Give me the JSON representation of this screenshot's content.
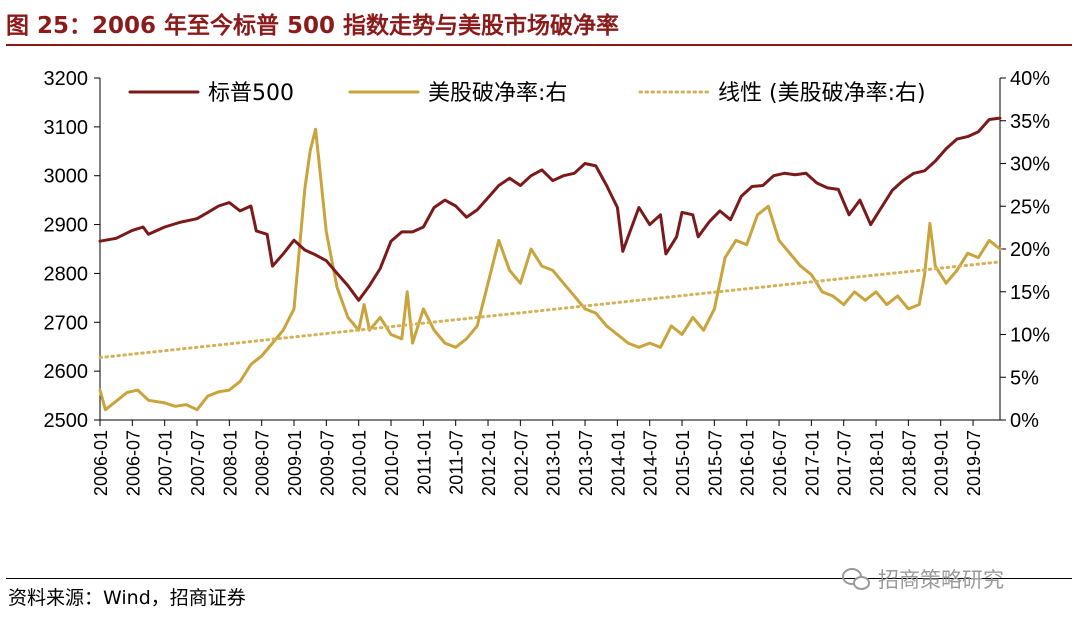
{
  "figure": {
    "title": "图 25：2006 年至今标普 500 指数走势与美股市场破净率",
    "source": "资料来源：Wind，招商证券",
    "watermark": "招商策略研究"
  },
  "colors": {
    "title": "#8b1a1a",
    "sp500": "#7a1a1a",
    "pb_ratio": "#c9a33c",
    "trend": "#d4b25a"
  },
  "icons": {
    "watermark": "wechat-icon"
  },
  "chart_data": {
    "type": "line",
    "title": "",
    "x_tick_labels": [
      "2006-01",
      "2006-07",
      "2007-01",
      "2007-07",
      "2008-01",
      "2008-07",
      "2009-01",
      "2009-07",
      "2010-01",
      "2010-07",
      "2011-01",
      "2011-07",
      "2012-01",
      "2012-07",
      "2013-01",
      "2013-07",
      "2014-01",
      "2014-07",
      "2015-01",
      "2015-07",
      "2016-01",
      "2016-07",
      "2017-01",
      "2017-07",
      "2018-01",
      "2018-07",
      "2019-01",
      "2019-07"
    ],
    "x_range": [
      "2006-01",
      "2019-12"
    ],
    "y_left": {
      "range": [
        2500,
        3200
      ],
      "ticks": [
        2500,
        2600,
        2700,
        2800,
        2900,
        3000,
        3100,
        3200
      ]
    },
    "y_right": {
      "range": [
        0,
        40
      ],
      "ticks": [
        "0%",
        "5%",
        "10%",
        "15%",
        "20%",
        "25%",
        "30%",
        "35%",
        "40%"
      ],
      "unit": "%"
    },
    "legend": {
      "placement": "top"
    },
    "series": [
      {
        "name": "标普500",
        "axis": "left",
        "style": "solid",
        "points": [
          [
            "2006-01",
            2866
          ],
          [
            "2006-04",
            2872
          ],
          [
            "2006-07",
            2888
          ],
          [
            "2006-09",
            2895
          ],
          [
            "2006-10",
            2880
          ],
          [
            "2007-01",
            2895
          ],
          [
            "2007-04",
            2905
          ],
          [
            "2007-07",
            2912
          ],
          [
            "2007-09",
            2925
          ],
          [
            "2007-11",
            2938
          ],
          [
            "2008-01",
            2945
          ],
          [
            "2008-03",
            2928
          ],
          [
            "2008-05",
            2938
          ],
          [
            "2008-06",
            2887
          ],
          [
            "2008-08",
            2880
          ],
          [
            "2008-09",
            2815
          ],
          [
            "2008-11",
            2840
          ],
          [
            "2009-01",
            2868
          ],
          [
            "2009-03",
            2848
          ],
          [
            "2009-05",
            2838
          ],
          [
            "2009-07",
            2826
          ],
          [
            "2009-09",
            2800
          ],
          [
            "2009-11",
            2775
          ],
          [
            "2010-01",
            2745
          ],
          [
            "2010-03",
            2775
          ],
          [
            "2010-05",
            2810
          ],
          [
            "2010-07",
            2866
          ],
          [
            "2010-09",
            2885
          ],
          [
            "2010-11",
            2885
          ],
          [
            "2011-01",
            2895
          ],
          [
            "2011-03",
            2935
          ],
          [
            "2011-05",
            2950
          ],
          [
            "2011-07",
            2938
          ],
          [
            "2011-09",
            2915
          ],
          [
            "2011-11",
            2930
          ],
          [
            "2012-01",
            2955
          ],
          [
            "2012-03",
            2980
          ],
          [
            "2012-05",
            2995
          ],
          [
            "2012-07",
            2980
          ],
          [
            "2012-09",
            3000
          ],
          [
            "2012-11",
            3012
          ],
          [
            "2013-01",
            2990
          ],
          [
            "2013-03",
            3000
          ],
          [
            "2013-05",
            3005
          ],
          [
            "2013-07",
            3025
          ],
          [
            "2013-09",
            3020
          ],
          [
            "2013-11",
            2980
          ],
          [
            "2014-01",
            2935
          ],
          [
            "2014-02",
            2845
          ],
          [
            "2014-03",
            2875
          ],
          [
            "2014-05",
            2935
          ],
          [
            "2014-07",
            2900
          ],
          [
            "2014-09",
            2920
          ],
          [
            "2014-10",
            2840
          ],
          [
            "2014-12",
            2875
          ],
          [
            "2015-01",
            2925
          ],
          [
            "2015-03",
            2920
          ],
          [
            "2015-04",
            2875
          ],
          [
            "2015-06",
            2905
          ],
          [
            "2015-08",
            2928
          ],
          [
            "2015-10",
            2910
          ],
          [
            "2015-12",
            2958
          ],
          [
            "2016-02",
            2978
          ],
          [
            "2016-04",
            2980
          ],
          [
            "2016-06",
            3000
          ],
          [
            "2016-08",
            3005
          ],
          [
            "2016-10",
            3002
          ],
          [
            "2016-12",
            3005
          ],
          [
            "2017-02",
            2985
          ],
          [
            "2017-04",
            2975
          ],
          [
            "2017-06",
            2972
          ],
          [
            "2017-08",
            2920
          ],
          [
            "2017-10",
            2950
          ],
          [
            "2017-12",
            2900
          ],
          [
            "2018-02",
            2935
          ],
          [
            "2018-04",
            2970
          ],
          [
            "2018-06",
            2990
          ],
          [
            "2018-08",
            3005
          ],
          [
            "2018-10",
            3010
          ],
          [
            "2018-12",
            3030
          ],
          [
            "2019-02",
            3055
          ],
          [
            "2019-04",
            3075
          ],
          [
            "2019-06",
            3080
          ],
          [
            "2019-08",
            3090
          ],
          [
            "2019-10",
            3115
          ],
          [
            "2019-12",
            3118
          ]
        ]
      },
      {
        "name": "美股破净率:右",
        "axis": "right",
        "style": "solid",
        "points": [
          [
            "2006-01",
            3.5
          ],
          [
            "2006-02",
            1.2
          ],
          [
            "2006-04",
            2.2
          ],
          [
            "2006-06",
            3.2
          ],
          [
            "2006-08",
            3.5
          ],
          [
            "2006-10",
            2.3
          ],
          [
            "2007-01",
            2.0
          ],
          [
            "2007-03",
            1.6
          ],
          [
            "2007-05",
            1.8
          ],
          [
            "2007-07",
            1.2
          ],
          [
            "2007-09",
            2.8
          ],
          [
            "2007-11",
            3.3
          ],
          [
            "2008-01",
            3.5
          ],
          [
            "2008-03",
            4.5
          ],
          [
            "2008-05",
            6.5
          ],
          [
            "2008-07",
            7.5
          ],
          [
            "2008-09",
            9.0
          ],
          [
            "2008-11",
            10.5
          ],
          [
            "2009-01",
            13.0
          ],
          [
            "2009-02",
            20.0
          ],
          [
            "2009-03",
            27.0
          ],
          [
            "2009-04",
            31.5
          ],
          [
            "2009-05",
            34.0
          ],
          [
            "2009-06",
            28.0
          ],
          [
            "2009-07",
            22.0
          ],
          [
            "2009-09",
            15.5
          ],
          [
            "2009-11",
            12.0
          ],
          [
            "2010-01",
            10.5
          ],
          [
            "2010-02",
            13.5
          ],
          [
            "2010-03",
            10.5
          ],
          [
            "2010-05",
            12.0
          ],
          [
            "2010-07",
            10.0
          ],
          [
            "2010-09",
            9.5
          ],
          [
            "2010-10",
            15.0
          ],
          [
            "2010-11",
            9.0
          ],
          [
            "2011-01",
            13.0
          ],
          [
            "2011-03",
            10.5
          ],
          [
            "2011-05",
            9.0
          ],
          [
            "2011-07",
            8.5
          ],
          [
            "2011-09",
            9.5
          ],
          [
            "2011-11",
            11.0
          ],
          [
            "2012-01",
            16.0
          ],
          [
            "2012-03",
            21.0
          ],
          [
            "2012-05",
            17.5
          ],
          [
            "2012-07",
            16.0
          ],
          [
            "2012-09",
            20.0
          ],
          [
            "2012-11",
            18.0
          ],
          [
            "2013-01",
            17.5
          ],
          [
            "2013-03",
            16.0
          ],
          [
            "2013-05",
            14.5
          ],
          [
            "2013-07",
            13.0
          ],
          [
            "2013-09",
            12.5
          ],
          [
            "2013-11",
            11.0
          ],
          [
            "2014-01",
            10.0
          ],
          [
            "2014-03",
            9.0
          ],
          [
            "2014-05",
            8.5
          ],
          [
            "2014-07",
            9.0
          ],
          [
            "2014-09",
            8.5
          ],
          [
            "2014-11",
            11.0
          ],
          [
            "2015-01",
            10.0
          ],
          [
            "2015-03",
            12.0
          ],
          [
            "2015-05",
            10.5
          ],
          [
            "2015-07",
            13.0
          ],
          [
            "2015-09",
            19.0
          ],
          [
            "2015-11",
            21.0
          ],
          [
            "2016-01",
            20.5
          ],
          [
            "2016-03",
            24.0
          ],
          [
            "2016-05",
            25.0
          ],
          [
            "2016-07",
            21.0
          ],
          [
            "2016-09",
            19.5
          ],
          [
            "2016-11",
            18.0
          ],
          [
            "2017-01",
            17.0
          ],
          [
            "2017-03",
            15.0
          ],
          [
            "2017-05",
            14.5
          ],
          [
            "2017-07",
            13.5
          ],
          [
            "2017-09",
            15.0
          ],
          [
            "2017-11",
            14.0
          ],
          [
            "2018-01",
            15.0
          ],
          [
            "2018-03",
            13.5
          ],
          [
            "2018-05",
            14.5
          ],
          [
            "2018-07",
            13.0
          ],
          [
            "2018-09",
            13.5
          ],
          [
            "2018-10",
            17.0
          ],
          [
            "2018-11",
            23.0
          ],
          [
            "2018-12",
            18.0
          ],
          [
            "2019-02",
            16.0
          ],
          [
            "2019-04",
            17.5
          ],
          [
            "2019-06",
            19.5
          ],
          [
            "2019-08",
            19.0
          ],
          [
            "2019-10",
            21.0
          ],
          [
            "2019-12",
            20.0
          ]
        ]
      },
      {
        "name": "线性 (美股破净率:右)",
        "axis": "right",
        "style": "dotted",
        "points": [
          [
            "2006-01",
            7.3
          ],
          [
            "2019-12",
            18.5
          ]
        ]
      }
    ]
  }
}
